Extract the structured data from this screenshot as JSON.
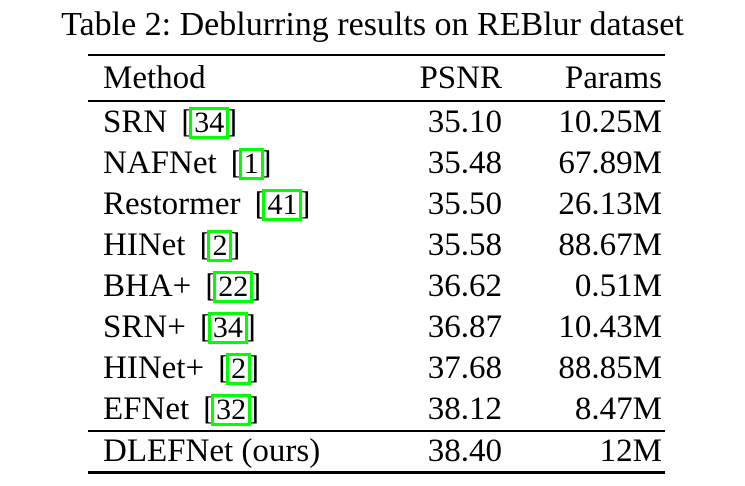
{
  "caption": "Table 2: Deblurring results on REBlur dataset",
  "table": {
    "columns": [
      "Method",
      "PSNR",
      "Params"
    ],
    "cite_brackets": {
      "left": "[",
      "right": "]"
    },
    "rows": [
      {
        "method": "SRN",
        "cite": "34",
        "psnr": "35.10",
        "params": "10.25M"
      },
      {
        "method": "NAFNet",
        "cite": "1",
        "psnr": "35.48",
        "params": "67.89M"
      },
      {
        "method": "Restormer",
        "cite": "41",
        "psnr": "35.50",
        "params": "26.13M"
      },
      {
        "method": "HINet",
        "cite": "2",
        "psnr": "35.58",
        "params": "88.67M"
      },
      {
        "method": "BHA+",
        "cite": "22",
        "psnr": "36.62",
        "params": "0.51M"
      },
      {
        "method": "SRN+",
        "cite": "34",
        "psnr": "36.87",
        "params": "10.43M"
      },
      {
        "method": "HINet+",
        "cite": "2",
        "psnr": "37.68",
        "params": "88.85M"
      },
      {
        "method": "EFNet",
        "cite": "32",
        "psnr": "38.12",
        "params": "8.47M"
      }
    ],
    "footer_row": {
      "method": "DLEFNet (ours)",
      "psnr": "38.40",
      "params": "12M"
    }
  },
  "colors": {
    "background": "#ffffff",
    "text": "#000000",
    "citation_box_border": "#00ff00"
  }
}
